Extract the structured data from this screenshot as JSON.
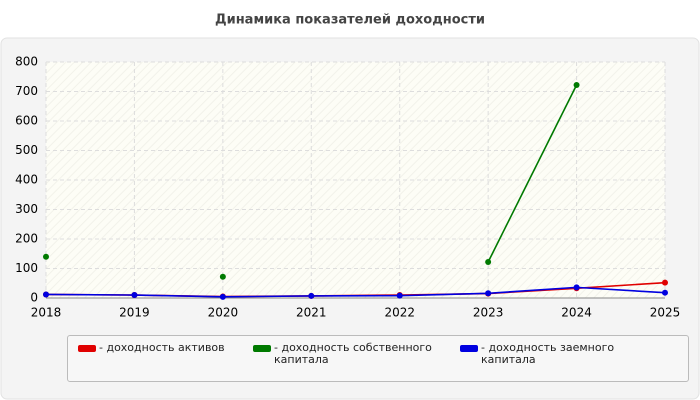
{
  "chart_data": {
    "type": "line",
    "title": "Динамика показателей доходности",
    "x": [
      2018,
      2019,
      2020,
      2021,
      2022,
      2023,
      2024,
      2025
    ],
    "xlim": [
      2018,
      2025
    ],
    "xticks": [
      2018,
      2019,
      2020,
      2021,
      2022,
      2023,
      2024,
      2025
    ],
    "ylim": [
      0,
      800
    ],
    "yticks": [
      0,
      100,
      200,
      300,
      400,
      500,
      600,
      700,
      800
    ],
    "grid": true,
    "series": [
      {
        "name": "- доходность активов",
        "color": "#e00000",
        "values": [
          12,
          10,
          5,
          7,
          10,
          15,
          33,
          52
        ]
      },
      {
        "name": "- доходность собственного капитала",
        "color": "#007a00",
        "values": [
          140,
          null,
          72,
          null,
          null,
          122,
          722,
          null
        ]
      },
      {
        "name": "- доходность заемного капитала",
        "color": "#0000e0",
        "values": [
          12,
          10,
          4,
          7,
          8,
          16,
          36,
          18
        ]
      }
    ]
  }
}
